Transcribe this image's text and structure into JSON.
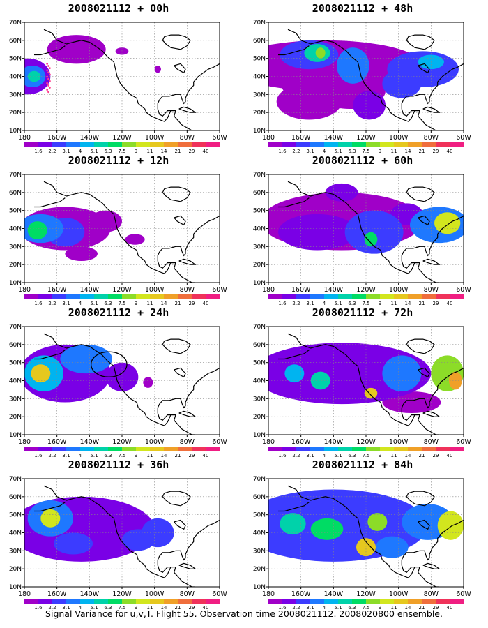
{
  "panels": [
    {
      "title": "2008021112 + 00h"
    },
    {
      "title": "2008021112 + 48h"
    },
    {
      "title": "2008021112 + 12h"
    },
    {
      "title": "2008021112 + 60h"
    },
    {
      "title": "2008021112 + 24h"
    },
    {
      "title": "2008021112 + 72h"
    },
    {
      "title": "2008021112 + 36h"
    },
    {
      "title": "2008021112 + 84h"
    }
  ],
  "axes": {
    "lat_labels": [
      "70N",
      "60N",
      "50N",
      "40N",
      "30N",
      "20N",
      "10N"
    ],
    "lon_labels": [
      "180",
      "160W",
      "140W",
      "120W",
      "100W",
      "80W",
      "60W"
    ]
  },
  "colorbar": {
    "labels": [
      "1.6",
      "2.2",
      "3.1",
      "4",
      "5.1",
      "6.3",
      "7.5",
      "9",
      "11",
      "14",
      "21",
      "29",
      "40"
    ],
    "colors": [
      "#a000c8",
      "#7a00e6",
      "#3c3cff",
      "#1e78ff",
      "#00b4f0",
      "#00d2aa",
      "#00dc64",
      "#8cdc28",
      "#d2e61e",
      "#e6c81e",
      "#f0a028",
      "#f06e3c",
      "#f0325a",
      "#f01e82"
    ]
  },
  "caption": "Signal Variance for u,v,T. Flight 55. Observation time 2008021112. 2008020800 ensemble."
}
